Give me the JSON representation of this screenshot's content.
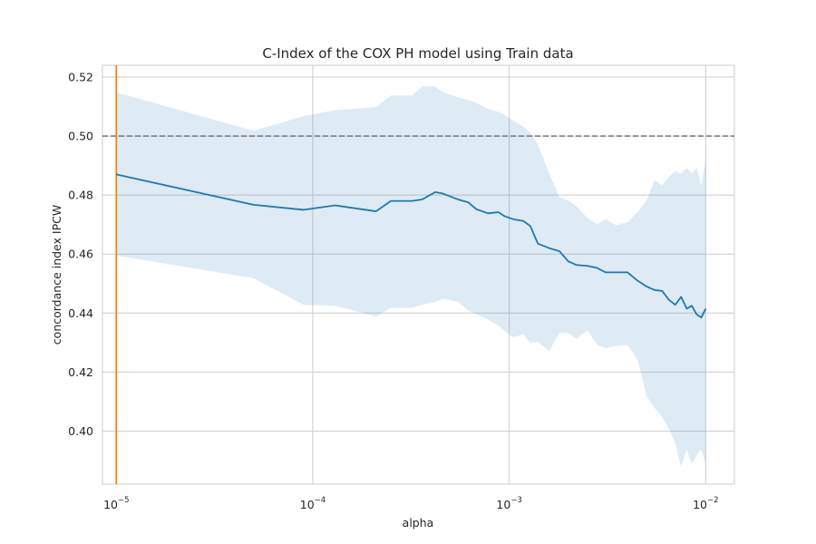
{
  "chart_data": {
    "type": "line",
    "title": "C-Index of the COX PH model using Train data",
    "xlabel": "alpha",
    "ylabel": "concordance index IPCW",
    "x_scale": "log",
    "xlim": [
      8.5e-06,
      0.014
    ],
    "ylim": [
      0.382,
      0.524
    ],
    "grid": true,
    "x_ticks": [
      {
        "value": 1e-05,
        "base": "10",
        "exp": "−5"
      },
      {
        "value": 0.0001,
        "base": "10",
        "exp": "−4"
      },
      {
        "value": 0.001,
        "base": "10",
        "exp": "−3"
      },
      {
        "value": 0.01,
        "base": "10",
        "exp": "−2"
      }
    ],
    "y_ticks": [
      {
        "value": 0.4,
        "label": "0.40"
      },
      {
        "value": 0.42,
        "label": "0.42"
      },
      {
        "value": 0.44,
        "label": "0.44"
      },
      {
        "value": 0.46,
        "label": "0.46"
      },
      {
        "value": 0.48,
        "label": "0.48"
      },
      {
        "value": 0.5,
        "label": "0.50"
      },
      {
        "value": 0.52,
        "label": "0.52"
      }
    ],
    "reference_hline": {
      "y": 0.5,
      "color": "#808080",
      "style": "dashed"
    },
    "reference_vline": {
      "x": 1e-05,
      "color": "#ff7f0e"
    },
    "series": [
      {
        "color": "#1f77b4",
        "band_color": "#1f77b4",
        "x": [
          1e-05,
          5e-05,
          9e-05,
          0.00013,
          0.00021,
          0.00025,
          0.00032,
          0.00036,
          0.00042,
          0.00046,
          0.00055,
          0.00062,
          0.00068,
          0.00078,
          0.00088,
          0.00095,
          0.00105,
          0.00118,
          0.00128,
          0.0014,
          0.0016,
          0.0018,
          0.002,
          0.0022,
          0.0025,
          0.0028,
          0.0031,
          0.0035,
          0.004,
          0.0045,
          0.005,
          0.0055,
          0.006,
          0.0065,
          0.007,
          0.0075,
          0.008,
          0.0085,
          0.009,
          0.0095,
          0.01
        ],
        "mean": [
          0.487,
          0.4767,
          0.475,
          0.4765,
          0.4745,
          0.478,
          0.478,
          0.4785,
          0.481,
          0.4805,
          0.4785,
          0.4775,
          0.4752,
          0.4738,
          0.4742,
          0.4728,
          0.4718,
          0.4712,
          0.4695,
          0.4635,
          0.462,
          0.461,
          0.4575,
          0.4563,
          0.456,
          0.4553,
          0.4538,
          0.4538,
          0.4538,
          0.451,
          0.449,
          0.4478,
          0.4475,
          0.4445,
          0.4428,
          0.4455,
          0.4415,
          0.4425,
          0.4395,
          0.4385,
          0.4415
        ],
        "upper": [
          0.5148,
          0.5018,
          0.5068,
          0.5088,
          0.5098,
          0.5138,
          0.5138,
          0.5168,
          0.5168,
          0.5148,
          0.5132,
          0.5122,
          0.5112,
          0.5092,
          0.5082,
          0.5072,
          0.5052,
          0.5032,
          0.5012,
          0.4972,
          0.4872,
          0.4792,
          0.4782,
          0.4762,
          0.4722,
          0.4702,
          0.4718,
          0.4698,
          0.4708,
          0.4742,
          0.4782,
          0.4852,
          0.4832,
          0.4862,
          0.4882,
          0.4872,
          0.4892,
          0.4872,
          0.4892,
          0.4832,
          0.4922
        ],
        "lower": [
          0.4595,
          0.4518,
          0.4428,
          0.4425,
          0.4388,
          0.4418,
          0.4418,
          0.4428,
          0.4438,
          0.4448,
          0.4438,
          0.4408,
          0.4398,
          0.4378,
          0.4358,
          0.4338,
          0.4318,
          0.4328,
          0.4298,
          0.4302,
          0.4272,
          0.4332,
          0.4332,
          0.4312,
          0.4342,
          0.4292,
          0.4282,
          0.4288,
          0.4292,
          0.4242,
          0.4118,
          0.4078,
          0.4048,
          0.4008,
          0.3958,
          0.3878,
          0.3938,
          0.3888,
          0.3918,
          0.3938,
          0.3888
        ]
      }
    ]
  }
}
